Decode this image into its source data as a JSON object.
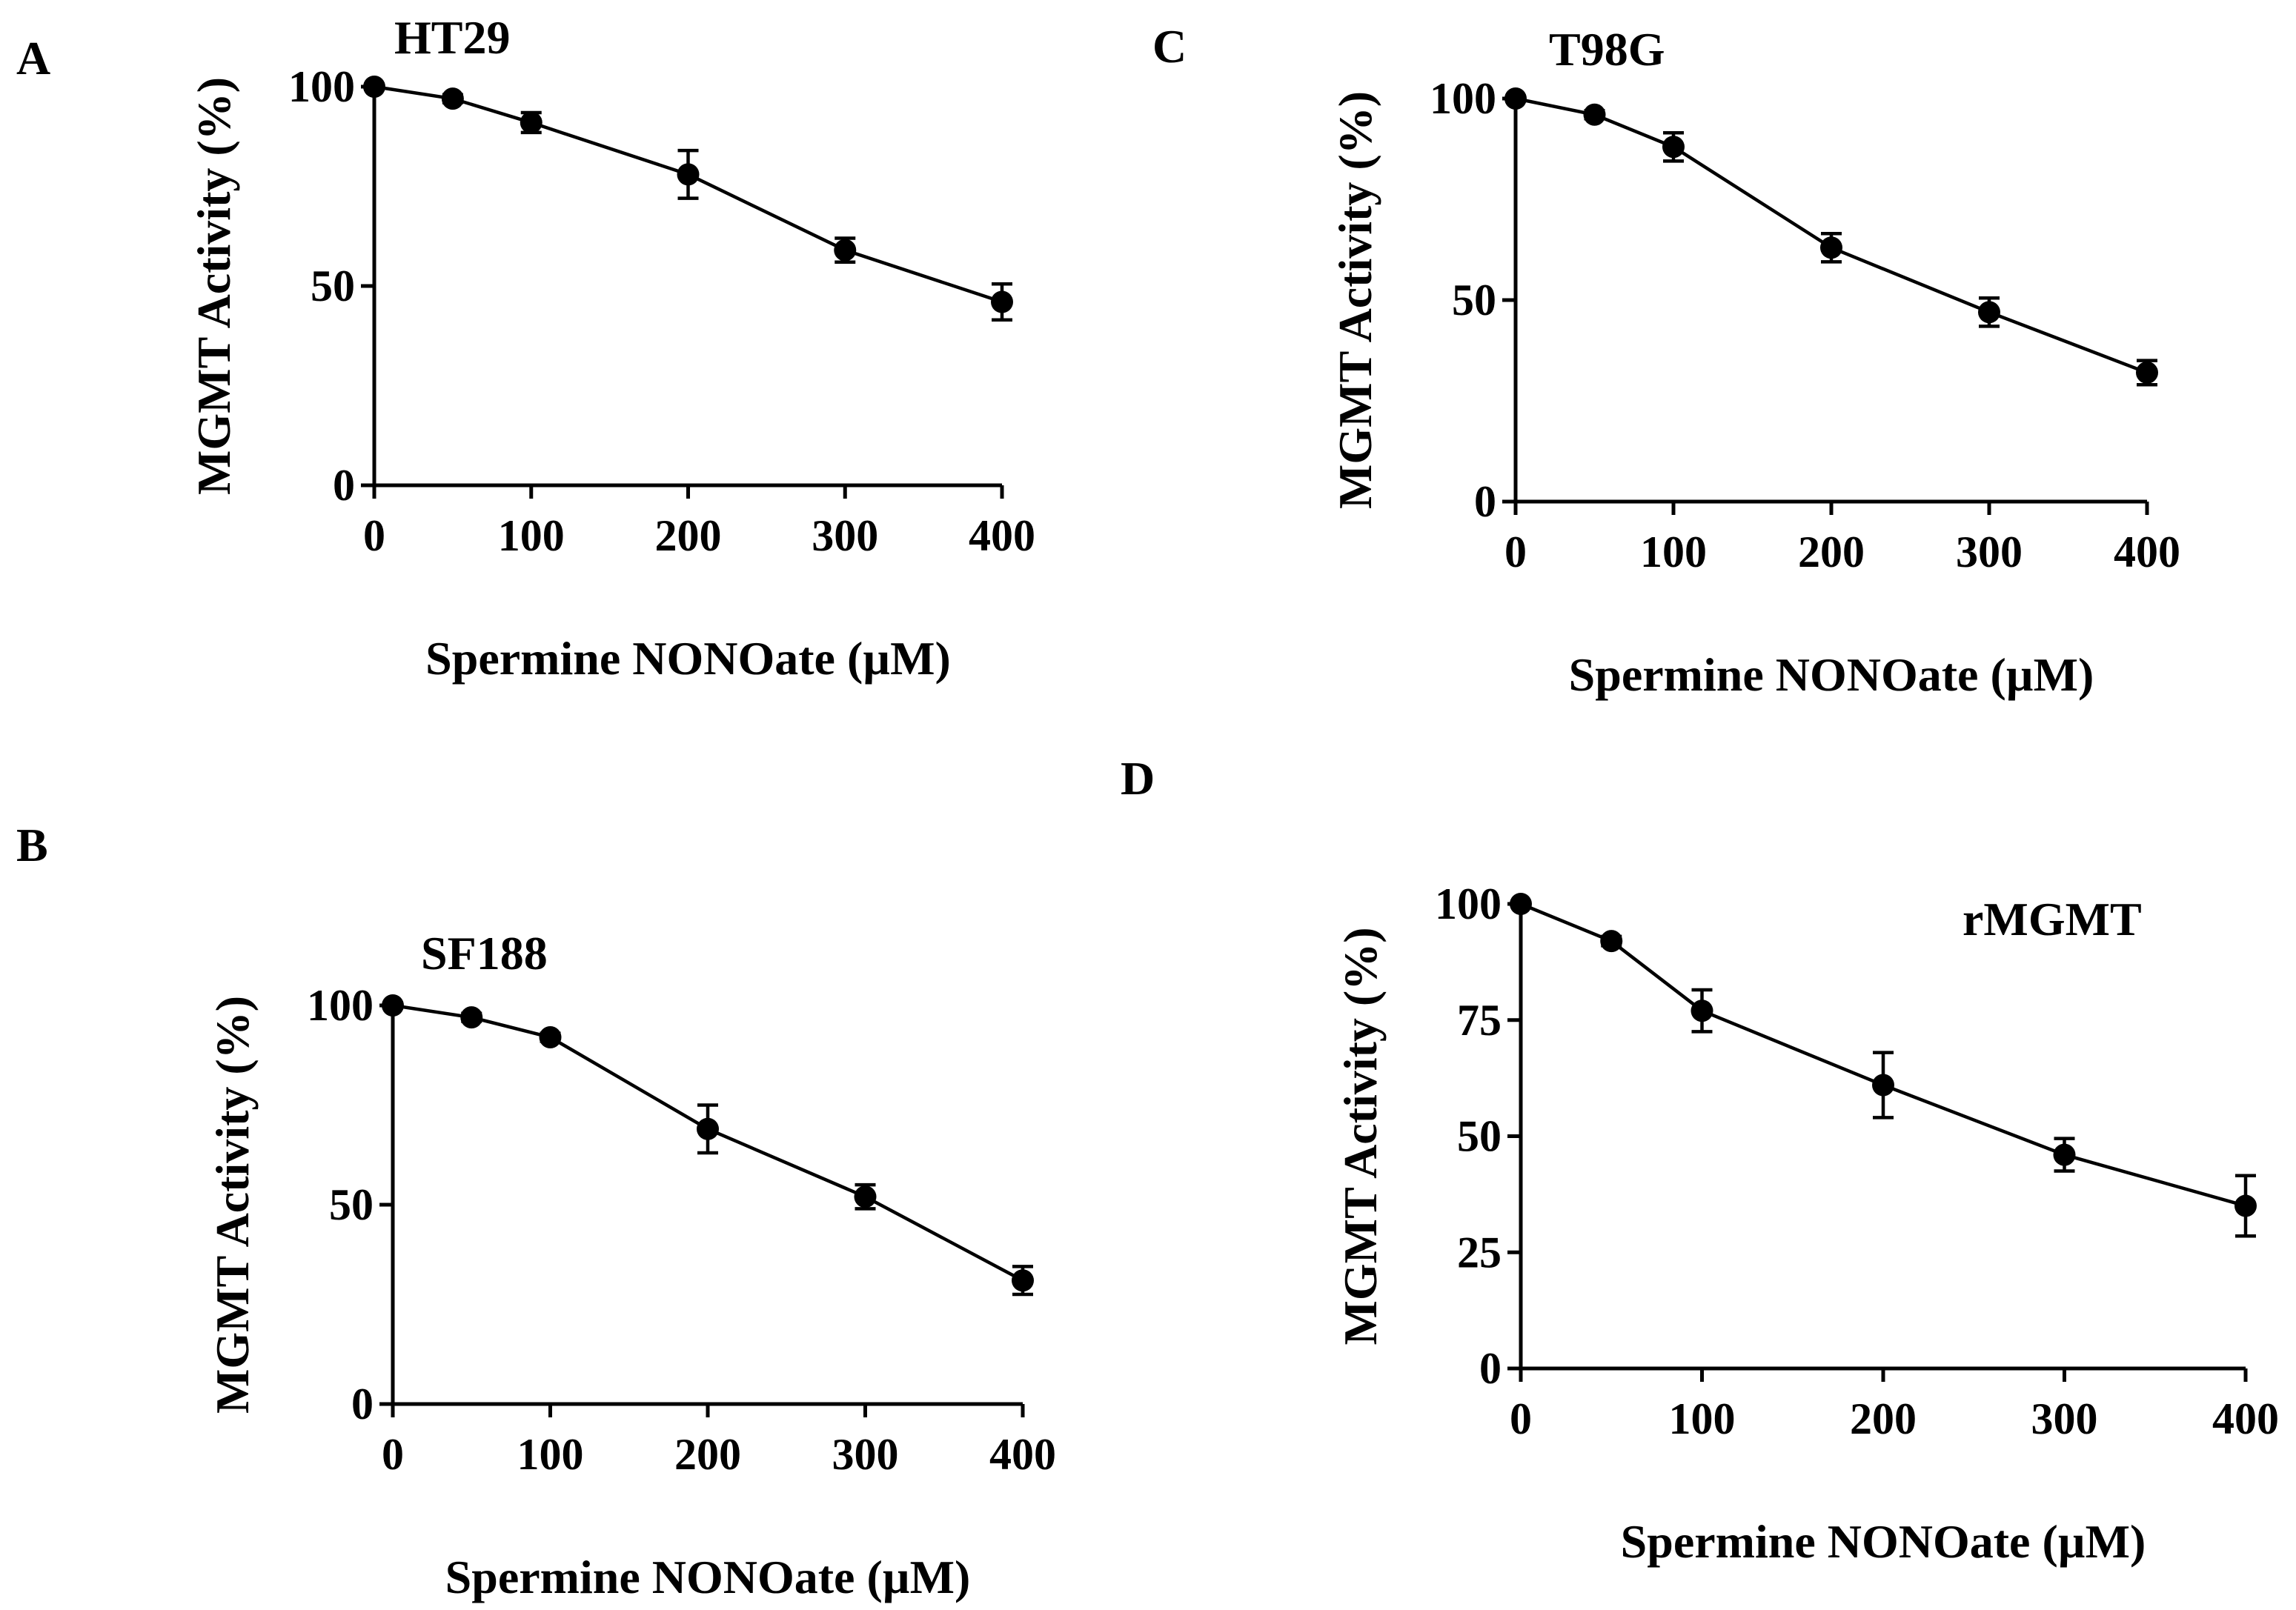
{
  "colors": {
    "ink": "#000000",
    "background": "#ffffff"
  },
  "chart_data": [
    {
      "type": "line",
      "panel": "A",
      "title": "HT29",
      "xlabel": "Spermine NONOate (µM)",
      "ylabel": "MGMT Activity (%)",
      "xlim": [
        0,
        400
      ],
      "ylim": [
        0,
        100
      ],
      "xticks": [
        0,
        100,
        200,
        300,
        400
      ],
      "yticks": [
        0,
        50,
        100
      ],
      "grid": false,
      "series": [
        {
          "x": [
            0,
            50,
            100,
            200,
            300,
            400
          ],
          "y": [
            100,
            97,
            91,
            78,
            59,
            46
          ],
          "err": [
            0,
            1,
            2.5,
            6,
            3,
            4.5
          ]
        }
      ]
    },
    {
      "type": "line",
      "panel": "B",
      "title": "SF188",
      "xlabel": "Spermine NONOate (µM)",
      "ylabel": "MGMT Activity (%)",
      "xlim": [
        0,
        400
      ],
      "ylim": [
        0,
        100
      ],
      "xticks": [
        0,
        100,
        200,
        300,
        400
      ],
      "yticks": [
        0,
        50,
        100
      ],
      "grid": false,
      "series": [
        {
          "x": [
            0,
            50,
            100,
            200,
            300,
            400
          ],
          "y": [
            100,
            97,
            92,
            69,
            52,
            31
          ],
          "err": [
            0,
            1,
            1,
            6,
            3,
            3.5
          ]
        }
      ]
    },
    {
      "type": "line",
      "panel": "C",
      "title": "T98G",
      "xlabel": "Spermine NONOate (µM)",
      "ylabel": "MGMT Activity (%)",
      "xlim": [
        0,
        400
      ],
      "ylim": [
        0,
        100
      ],
      "xticks": [
        0,
        100,
        200,
        300,
        400
      ],
      "yticks": [
        0,
        50,
        100
      ],
      "grid": false,
      "series": [
        {
          "x": [
            0,
            50,
            100,
            200,
            300,
            400
          ],
          "y": [
            100,
            96,
            88,
            63,
            47,
            32
          ],
          "err": [
            0,
            1,
            3.5,
            3.5,
            3.5,
            3
          ]
        }
      ]
    },
    {
      "type": "line",
      "panel": "D",
      "title": "rMGMT",
      "xlabel": "Spermine NONOate (µM)",
      "ylabel": "MGMT Activity (%)",
      "xlim": [
        0,
        400
      ],
      "ylim": [
        0,
        100
      ],
      "xticks": [
        0,
        100,
        200,
        300,
        400
      ],
      "yticks": [
        0,
        25,
        50,
        75,
        100
      ],
      "grid": false,
      "series": [
        {
          "x": [
            0,
            50,
            100,
            200,
            300,
            400
          ],
          "y": [
            100,
            92,
            77,
            61,
            46,
            35
          ],
          "err": [
            0,
            1,
            4.5,
            7,
            3.5,
            6.5
          ]
        }
      ]
    }
  ]
}
